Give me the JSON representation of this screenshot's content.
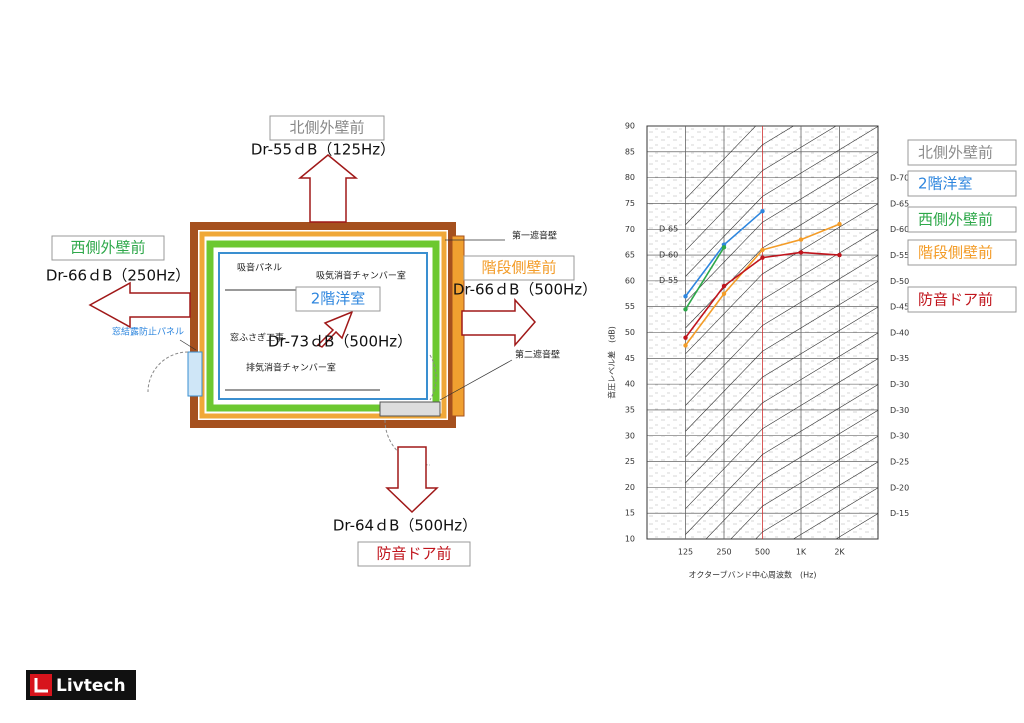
{
  "plan": {
    "north_label": "北側外壁前",
    "north_value": "Dr-55ｄB（125Hz）",
    "west_label": "西側外壁前",
    "west_value": "Dr-66ｄB（250Hz）",
    "east_label": "階段側壁前",
    "east_value": "Dr-66ｄB（500Hz）",
    "room_label": "2階洋室",
    "room_value": "Dr-73ｄB（500Hz）",
    "south_value": "Dr-64ｄB（500Hz）",
    "south_label": "防音ドア前",
    "notes": [
      "吸音パネル",
      "吸気消音チャンバー室",
      "窓ふさぎ工事",
      "排気消音チャンバー室",
      "窓結露防止パネル",
      "第一遮音壁",
      "第二遮音壁"
    ],
    "logo": "Livtech"
  },
  "chart_data": {
    "type": "line",
    "x_label": "オクターブバンド中心周波数　(Hz)",
    "y_label": "音圧レベル差　(dB)",
    "categories": [
      "125",
      "250",
      "500",
      "1K",
      "2K"
    ],
    "ylim": [
      10,
      90
    ],
    "yticks": [
      10,
      15,
      20,
      25,
      30,
      35,
      40,
      45,
      50,
      55,
      60,
      65,
      70,
      75,
      80,
      85,
      90
    ],
    "grid": true,
    "right_curve_labels": [
      "D-70",
      "D-65",
      "D-60",
      "D-55",
      "D-50",
      "D-45",
      "D-40",
      "D-35",
      "D-30",
      "D-30",
      "D-30",
      "D-25",
      "D-20",
      "D-15"
    ],
    "left_curve_labels": [
      "D-65",
      "D-60",
      "D-55"
    ],
    "series": [
      {
        "name": "北側外壁前",
        "color": "#8c8c8c",
        "values": [
          null,
          null,
          null,
          null,
          null
        ]
      },
      {
        "name": "2階洋室",
        "color": "#2e86de",
        "values": [
          57,
          67,
          73.5,
          null,
          null
        ]
      },
      {
        "name": "西側外壁前",
        "color": "#2ea84a",
        "values": [
          54.5,
          66.5,
          null,
          null,
          null
        ]
      },
      {
        "name": "階段側壁前",
        "color": "#f39c28",
        "values": [
          47.5,
          57.5,
          66,
          68,
          71
        ]
      },
      {
        "name": "防音ドア前",
        "color": "#c0141c",
        "values": [
          49,
          59,
          64.5,
          65.5,
          65
        ]
      }
    ]
  }
}
